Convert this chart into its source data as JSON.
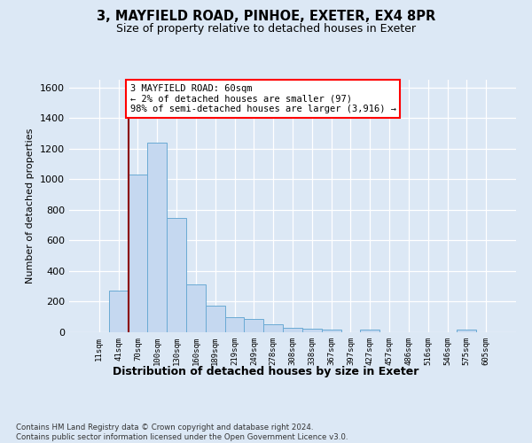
{
  "title": "3, MAYFIELD ROAD, PINHOE, EXETER, EX4 8PR",
  "subtitle": "Size of property relative to detached houses in Exeter",
  "xlabel": "Distribution of detached houses by size in Exeter",
  "ylabel": "Number of detached properties",
  "bar_labels": [
    "11sqm",
    "41sqm",
    "70sqm",
    "100sqm",
    "130sqm",
    "160sqm",
    "189sqm",
    "219sqm",
    "249sqm",
    "278sqm",
    "308sqm",
    "338sqm",
    "367sqm",
    "397sqm",
    "427sqm",
    "457sqm",
    "486sqm",
    "516sqm",
    "546sqm",
    "575sqm",
    "605sqm"
  ],
  "bar_values": [
    0,
    275,
    1030,
    1240,
    745,
    310,
    175,
    100,
    85,
    55,
    30,
    25,
    20,
    0,
    15,
    0,
    0,
    0,
    0,
    15,
    0
  ],
  "bar_color": "#c5d8f0",
  "bar_edge_color": "#6aaad4",
  "vline_pos": 1.5,
  "vline_color": "#8b0000",
  "annotation_text": "3 MAYFIELD ROAD: 60sqm\n← 2% of detached houses are smaller (97)\n98% of semi-detached houses are larger (3,916) →",
  "ylim": [
    0,
    1650
  ],
  "yticks": [
    0,
    200,
    400,
    600,
    800,
    1000,
    1200,
    1400,
    1600
  ],
  "footnote": "Contains HM Land Registry data © Crown copyright and database right 2024.\nContains public sector information licensed under the Open Government Licence v3.0.",
  "bg_color": "#dce8f5",
  "title_fontsize": 10.5,
  "subtitle_fontsize": 9
}
